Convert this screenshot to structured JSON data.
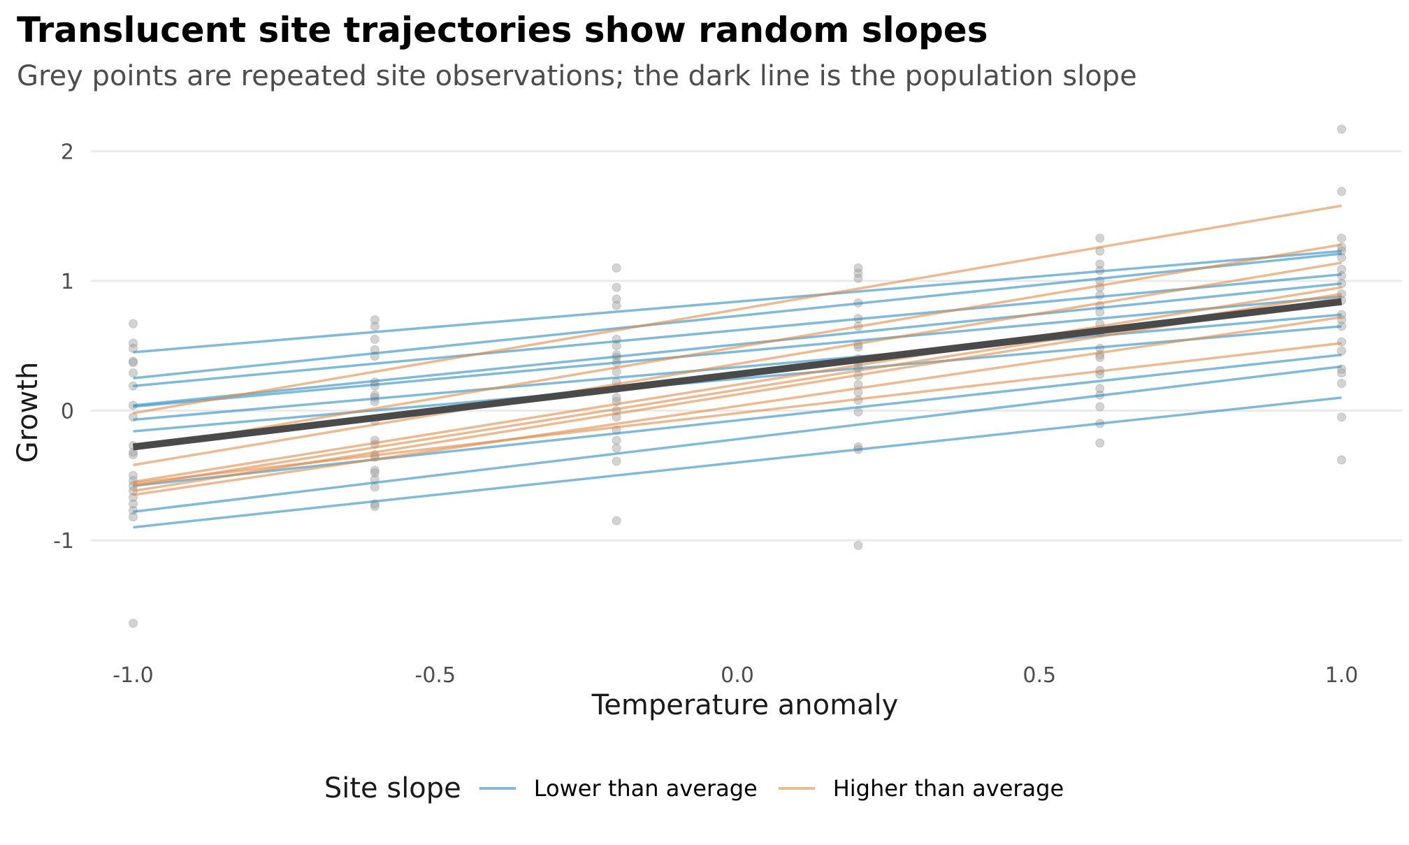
{
  "chart_data": {
    "type": "line",
    "title": "Translucent site trajectories show random slopes",
    "subtitle": "Grey points are repeated site observations; the dark line is the population slope",
    "xlabel": "Temperature anomaly",
    "ylabel": "Growth",
    "xlim": [
      -1.07,
      1.1
    ],
    "ylim": [
      -1.9,
      2.25
    ],
    "x_ticks": [
      -1.0,
      -0.5,
      0.0,
      0.5,
      1.0
    ],
    "x_tick_labels": [
      "-1.0",
      "-0.5",
      "0.0",
      "0.5",
      "1.0"
    ],
    "y_ticks": [
      -1,
      0,
      1,
      2
    ],
    "y_tick_labels": [
      "-1",
      "0",
      "1",
      "2"
    ],
    "grid": "horizontal major lines",
    "legend": {
      "title": "Site slope",
      "position": "bottom",
      "entries": [
        {
          "label": "Lower than average",
          "color": "#2b8cbe"
        },
        {
          "label": "Higher than average",
          "color": "#e08a48"
        }
      ]
    },
    "population_line": {
      "x": [
        -1.0,
        1.0
      ],
      "y": [
        -0.28,
        0.84
      ],
      "color": "#4a4a4a"
    },
    "site_lines": [
      {
        "group": "lower",
        "y_start": 0.45,
        "y_end": 1.23
      },
      {
        "group": "lower",
        "y_start": 0.25,
        "y_end": 1.21
      },
      {
        "group": "lower",
        "y_start": 0.19,
        "y_end": 1.05
      },
      {
        "group": "lower",
        "y_start": 0.04,
        "y_end": 0.98
      },
      {
        "group": "lower",
        "y_start": 0.03,
        "y_end": 0.88
      },
      {
        "group": "lower",
        "y_start": -0.07,
        "y_end": 0.74
      },
      {
        "group": "lower",
        "y_start": -0.16,
        "y_end": 0.65
      },
      {
        "group": "lower",
        "y_start": -0.58,
        "y_end": 0.43
      },
      {
        "group": "lower",
        "y_start": -0.78,
        "y_end": 0.34
      },
      {
        "group": "lower",
        "y_start": -0.9,
        "y_end": 0.1
      },
      {
        "group": "higher",
        "y_start": -0.02,
        "y_end": 1.58
      },
      {
        "group": "higher",
        "y_start": -0.3,
        "y_end": 1.28
      },
      {
        "group": "higher",
        "y_start": -0.42,
        "y_end": 1.14
      },
      {
        "group": "higher",
        "y_start": -0.55,
        "y_end": 0.95
      },
      {
        "group": "higher",
        "y_start": -0.58,
        "y_end": 0.9
      },
      {
        "group": "higher",
        "y_start": -0.62,
        "y_end": 0.87
      },
      {
        "group": "higher",
        "y_start": -0.65,
        "y_end": 0.72
      },
      {
        "group": "higher",
        "y_start": -0.56,
        "y_end": 0.52
      }
    ],
    "points": [
      {
        "x": -1.0,
        "y": [
          0.67,
          0.52,
          0.48,
          0.38,
          0.37,
          0.29,
          0.19,
          0.04,
          -0.05,
          -0.27,
          -0.32,
          -0.34,
          -0.5,
          -0.54,
          -0.58,
          -0.62,
          -0.67,
          -0.72,
          -0.77,
          -0.82,
          -1.64
        ]
      },
      {
        "x": -0.6,
        "y": [
          0.7,
          0.65,
          0.55,
          0.47,
          0.42,
          0.22,
          0.19,
          0.12,
          0.1,
          0.07,
          -0.08,
          -0.23,
          -0.26,
          -0.34,
          -0.36,
          -0.46,
          -0.48,
          -0.53,
          -0.59,
          -0.72,
          -0.74
        ]
      },
      {
        "x": -0.2,
        "y": [
          1.1,
          0.95,
          0.86,
          0.81,
          0.55,
          0.5,
          0.43,
          0.41,
          0.37,
          0.3,
          0.22,
          0.17,
          0.1,
          0.07,
          0.0,
          -0.05,
          -0.15,
          -0.23,
          -0.29,
          -0.39,
          -0.85
        ]
      },
      {
        "x": 0.2,
        "y": [
          1.1,
          1.06,
          1.02,
          0.83,
          0.71,
          0.65,
          0.51,
          0.49,
          0.4,
          0.37,
          0.33,
          0.27,
          0.2,
          0.14,
          0.08,
          -0.01,
          -0.28,
          -0.3,
          -1.04
        ]
      },
      {
        "x": 0.6,
        "y": [
          1.33,
          1.23,
          1.13,
          1.08,
          1.0,
          0.95,
          0.89,
          0.81,
          0.76,
          0.67,
          0.6,
          0.48,
          0.43,
          0.41,
          0.31,
          0.28,
          0.17,
          0.12,
          0.03,
          -0.1,
          -0.25
        ]
      },
      {
        "x": 1.0,
        "y": [
          2.17,
          1.69,
          1.33,
          1.26,
          1.23,
          1.18,
          1.09,
          1.04,
          0.98,
          0.9,
          0.85,
          0.74,
          0.7,
          0.65,
          0.53,
          0.46,
          0.32,
          0.29,
          0.21,
          -0.05,
          -0.38
        ]
      }
    ]
  }
}
